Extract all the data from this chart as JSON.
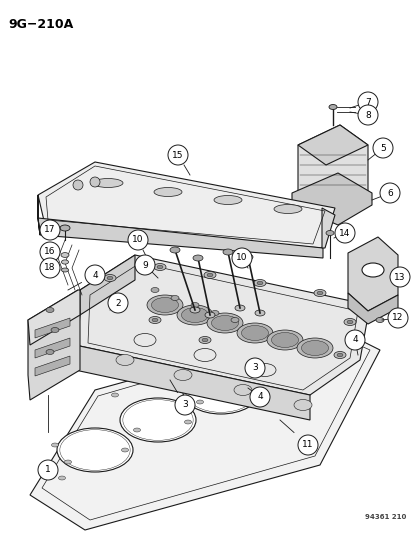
{
  "title": "9G−210A",
  "watermark": "94361 210",
  "bg_color": "#ffffff",
  "line_color": "#1a1a1a",
  "fig_width": 4.14,
  "fig_height": 5.33,
  "dpi": 100
}
